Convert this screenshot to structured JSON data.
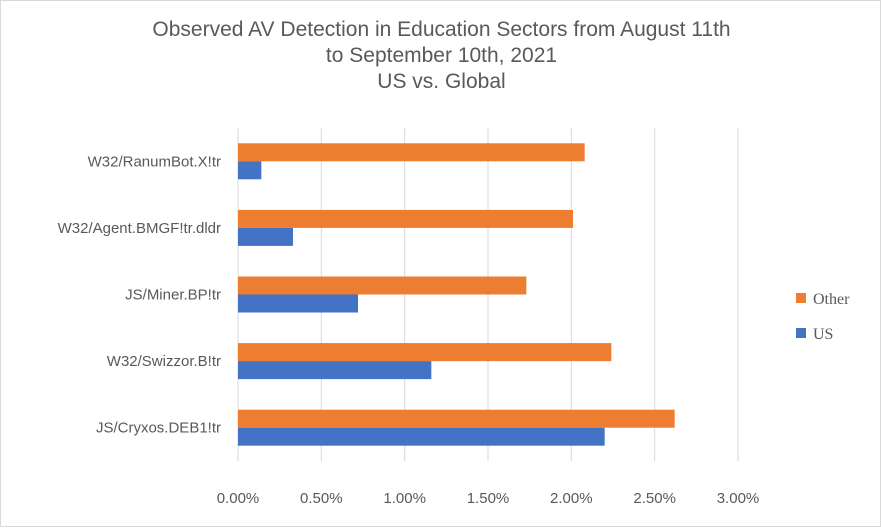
{
  "chart_data": {
    "type": "bar",
    "orientation": "horizontal",
    "title_lines": [
      "Observed AV Detection in Education Sectors from August 11th",
      "to September 10th, 2021",
      "US vs. Global"
    ],
    "categories": [
      "W32/RanumBot.X!tr",
      "W32/Agent.BMGF!tr.dldr",
      "JS/Miner.BP!tr",
      "W32/Swizzor.B!tr",
      "JS/Cryxos.DEB1!tr"
    ],
    "series": [
      {
        "name": "Other",
        "color": "#ED7D31",
        "values": [
          2.08,
          2.01,
          1.73,
          2.24,
          2.62
        ]
      },
      {
        "name": "US",
        "color": "#4472C4",
        "values": [
          0.14,
          0.33,
          0.72,
          1.16,
          2.2
        ]
      }
    ],
    "x_ticks": [
      "0.00%",
      "0.50%",
      "1.00%",
      "1.50%",
      "2.00%",
      "2.50%",
      "3.00%"
    ],
    "xlim": [
      0,
      3
    ],
    "x_unit": "percent",
    "grid": true,
    "legend_position": "right",
    "legend": [
      "Other",
      "US"
    ]
  }
}
